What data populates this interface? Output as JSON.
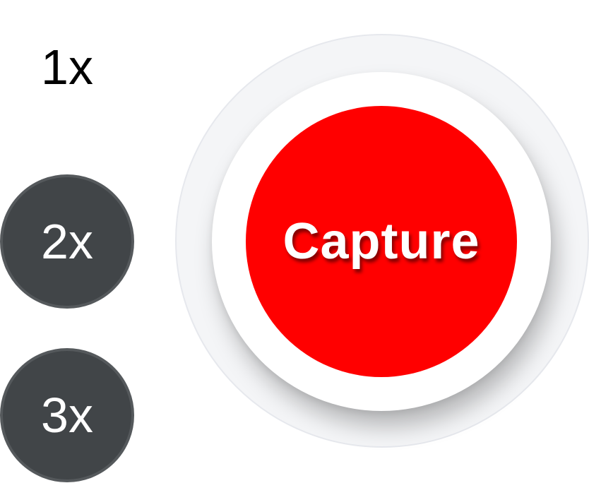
{
  "zoom": {
    "options": [
      {
        "label": "1x",
        "selected": true
      },
      {
        "label": "2x",
        "selected": false
      },
      {
        "label": "3x",
        "selected": false
      }
    ]
  },
  "capture": {
    "label": "Capture"
  },
  "colors": {
    "capture_red": "#ff0000",
    "zoom_button_bg": "#414548",
    "selected_text": "#000000",
    "unselected_text": "#ffffff",
    "outer_ring": "#f4f5f7"
  }
}
